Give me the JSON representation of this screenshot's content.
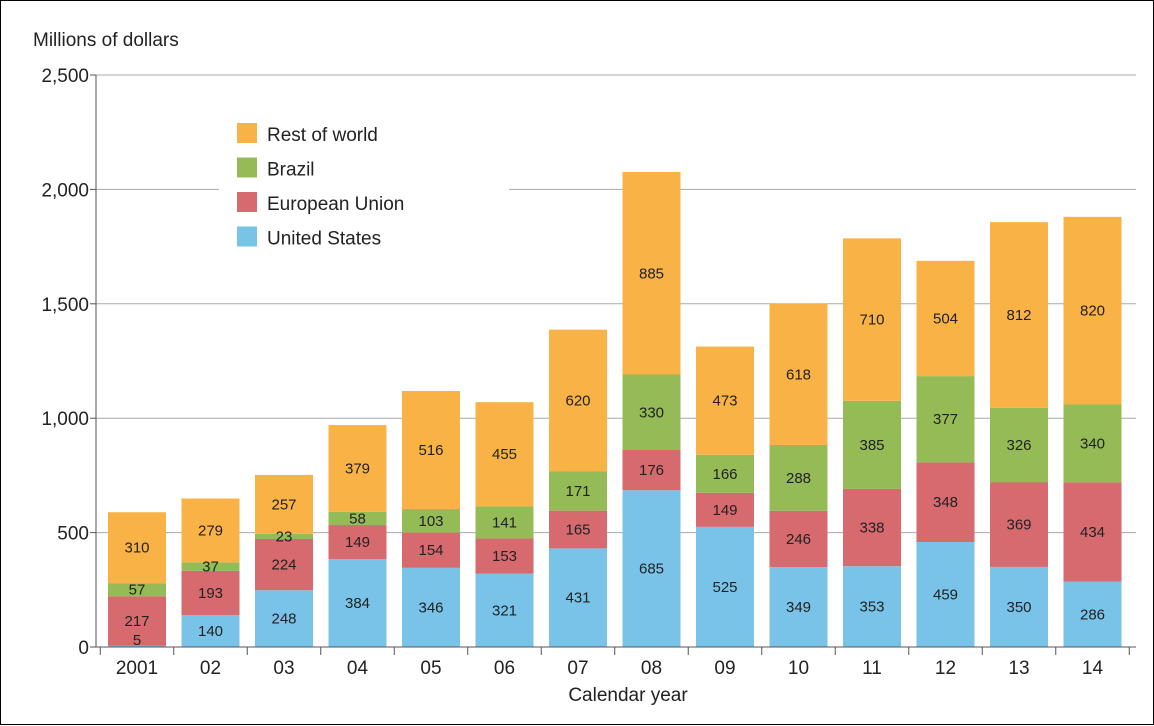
{
  "chart_data": {
    "type": "bar",
    "stacked": true,
    "ylabel": "Millions of dollars",
    "xlabel": "Calendar year",
    "ylim": [
      0,
      2500
    ],
    "yticks": [
      0,
      500,
      1000,
      1500,
      2000,
      2500
    ],
    "ytick_labels": [
      "0",
      "500",
      "1,000",
      "1,500",
      "2,000",
      "2,500"
    ],
    "categories": [
      "2001",
      "02",
      "03",
      "04",
      "05",
      "06",
      "07",
      "08",
      "09",
      "10",
      "11",
      "12",
      "13",
      "14"
    ],
    "grid": true,
    "legend_position": "top-left",
    "series": [
      {
        "name": "United States",
        "color": "#79c3e8",
        "values": [
          5,
          140,
          248,
          384,
          346,
          321,
          431,
          685,
          525,
          349,
          353,
          459,
          350,
          286
        ]
      },
      {
        "name": "European Union",
        "color": "#d66a6e",
        "values": [
          217,
          193,
          224,
          149,
          154,
          153,
          165,
          176,
          149,
          246,
          338,
          348,
          369,
          434
        ]
      },
      {
        "name": "Brazil",
        "color": "#94bb56",
        "values": [
          57,
          37,
          23,
          58,
          103,
          141,
          171,
          330,
          166,
          288,
          385,
          377,
          326,
          340
        ]
      },
      {
        "name": "Rest of world",
        "color": "#f9b246",
        "values": [
          310,
          279,
          257,
          379,
          516,
          455,
          620,
          885,
          473,
          618,
          710,
          504,
          812,
          820
        ]
      }
    ],
    "legend_order": [
      "Rest of world",
      "Brazil",
      "European Union",
      "United States"
    ]
  }
}
